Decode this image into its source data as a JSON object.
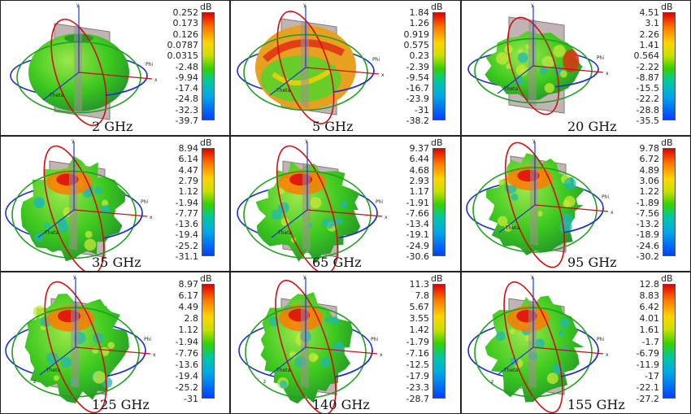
{
  "unit_label": "dB",
  "axis_labels": {
    "y": "y",
    "x": "x",
    "z": "z",
    "phi": "Phi",
    "theta": "Theta"
  },
  "colormap": [
    "#e00000",
    "#ff7a00",
    "#ffd400",
    "#c8e000",
    "#38d000",
    "#00c8a0",
    "#00a8e8",
    "#0040ff"
  ],
  "panels": [
    {
      "caption": "2 GHz",
      "ticks": [
        "0.252",
        "0.173",
        "0.126",
        "0.0787",
        "0.0315",
        "-2.48",
        "-9.94",
        "-17.4",
        "-24.8",
        "-32.3",
        "-39.7"
      ]
    },
    {
      "caption": "5 GHz",
      "ticks": [
        "1.84",
        "1.26",
        "0.919",
        "0.575",
        "0.23",
        "-2.39",
        "-9.54",
        "-16.7",
        "-23.9",
        "-31",
        "-38.2"
      ]
    },
    {
      "caption": "20 GHz",
      "ticks": [
        "4.51",
        "3.1",
        "2.26",
        "1.41",
        "0.564",
        "-2.22",
        "-8.87",
        "-15.5",
        "-22.2",
        "-28.8",
        "-35.5"
      ]
    },
    {
      "caption": "35 GHz",
      "ticks": [
        "8.94",
        "6.14",
        "4.47",
        "2.79",
        "1.12",
        "-1.94",
        "-7.77",
        "-13.6",
        "-19.4",
        "-25.2",
        "-31.1"
      ]
    },
    {
      "caption": "65 GHz",
      "ticks": [
        "9.37",
        "6.44",
        "4.68",
        "2.93",
        "1.17",
        "-1.91",
        "-7.66",
        "-13.4",
        "-19.1",
        "-24.9",
        "-30.6"
      ]
    },
    {
      "caption": "95 GHz",
      "ticks": [
        "9.78",
        "6.72",
        "4.89",
        "3.06",
        "1.22",
        "-1.89",
        "-7.56",
        "-13.2",
        "-18.9",
        "-24.6",
        "-30.2"
      ]
    },
    {
      "caption": "125 GHz",
      "ticks": [
        "8.97",
        "6.17",
        "4.49",
        "2.8",
        "1.12",
        "-1.94",
        "-7.76",
        "-13.6",
        "-19.4",
        "-25.2",
        "-31"
      ]
    },
    {
      "caption": "140 GHz",
      "ticks": [
        "11.3",
        "7.8",
        "5.67",
        "3.55",
        "1.42",
        "-1.79",
        "-7.16",
        "-12.5",
        "-17.9",
        "-23.3",
        "-28.7"
      ]
    },
    {
      "caption": "155 GHz",
      "ticks": [
        "12.8",
        "8.83",
        "6.42",
        "4.01",
        "1.61",
        "-1.7",
        "-6.79",
        "-11.9",
        "-17",
        "-22.1",
        "-27.2"
      ]
    }
  ]
}
